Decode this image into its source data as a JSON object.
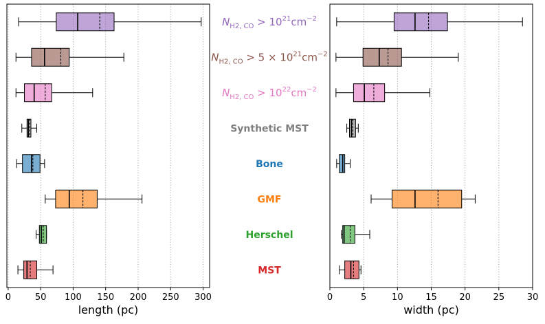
{
  "chart_data": [
    {
      "type": "boxplot",
      "orientation": "horizontal",
      "xlabel": "length (pc)",
      "xlim": [
        -2,
        310
      ],
      "xticks": [
        0,
        50,
        100,
        150,
        200,
        250,
        300
      ],
      "grid": "vertical dotted",
      "mean_line": "dashed",
      "categories": [
        "NH2_1e21",
        "NH2_5e21",
        "NH2_1e22",
        "Synthetic MST",
        "Bone",
        "GMF",
        "Herschel",
        "MST"
      ],
      "boxes": [
        {
          "whislo": 16,
          "q1": 74,
          "med": 107,
          "mean": 141,
          "q3": 163,
          "whishi": 297
        },
        {
          "whislo": 12,
          "q1": 36,
          "med": 56,
          "mean": 81,
          "q3": 94,
          "whishi": 178
        },
        {
          "whislo": 12,
          "q1": 25,
          "med": 40,
          "mean": 57,
          "q3": 67,
          "whishi": 130
        },
        {
          "whislo": 21,
          "q1": 29,
          "med": 31,
          "mean": 33,
          "q3": 35,
          "whishi": 44
        },
        {
          "whislo": 13,
          "q1": 22,
          "med": 36,
          "mean": 38,
          "q3": 49,
          "whishi": 56
        },
        {
          "whislo": 57,
          "q1": 73,
          "med": 94,
          "mean": 115,
          "q3": 137,
          "whishi": 206
        },
        {
          "whislo": 43,
          "q1": 48,
          "med": 51,
          "mean": 54,
          "q3": 59,
          "whishi": 59
        },
        {
          "whislo": 15,
          "q1": 24,
          "med": 29,
          "mean": 34,
          "q3": 44,
          "whishi": 69
        }
      ]
    },
    {
      "type": "boxplot",
      "orientation": "horizontal",
      "xlabel": "width (pc)",
      "xlim": [
        0,
        30
      ],
      "xticks": [
        0,
        5,
        10,
        15,
        20,
        25,
        30
      ],
      "grid": "vertical dotted",
      "mean_line": "dashed",
      "categories": [
        "NH2_1e21",
        "NH2_5e21",
        "NH2_1e22",
        "Synthetic MST",
        "Bone",
        "GMF",
        "Herschel",
        "MST"
      ],
      "boxes": [
        {
          "whislo": 1.0,
          "q1": 9.5,
          "med": 12.6,
          "mean": 14.6,
          "q3": 17.4,
          "whishi": 28.5
        },
        {
          "whislo": 0.9,
          "q1": 4.9,
          "med": 7.3,
          "mean": 8.6,
          "q3": 10.6,
          "whishi": 19.0
        },
        {
          "whislo": 0.9,
          "q1": 3.5,
          "med": 5.1,
          "mean": 6.5,
          "q3": 8.1,
          "whishi": 14.8
        },
        {
          "whislo": 2.5,
          "q1": 2.9,
          "med": 3.2,
          "mean": 3.4,
          "q3": 3.8,
          "whishi": 4.2
        },
        {
          "whislo": 1.0,
          "q1": 1.4,
          "med": 1.9,
          "mean": 1.9,
          "q3": 2.2,
          "whishi": 3.0
        },
        {
          "whislo": 6.1,
          "q1": 9.2,
          "med": 12.6,
          "mean": 16.0,
          "q3": 19.5,
          "whishi": 21.5
        },
        {
          "whislo": 1.7,
          "q1": 1.9,
          "med": 2.1,
          "mean": 3.0,
          "q3": 3.7,
          "whishi": 5.9
        },
        {
          "whislo": 1.4,
          "q1": 2.2,
          "med": 3.1,
          "mean": 3.5,
          "q3": 4.3,
          "whishi": 4.6
        }
      ]
    }
  ],
  "labels": [
    {
      "id": "nh2-1e21",
      "text_parts": [
        "N",
        "H2, CO",
        " > 10",
        "21",
        "cm",
        "−2"
      ],
      "color": "#9467bd"
    },
    {
      "id": "nh2-5e21",
      "text_parts": [
        "N",
        "H2, CO",
        " > 5 × 10",
        "21",
        "cm",
        "−2"
      ],
      "color": "#8c564b"
    },
    {
      "id": "nh2-1e22",
      "text_parts": [
        "N",
        "H2, CO",
        " > 10",
        "22",
        "cm",
        "−2"
      ],
      "color": "#e377c2"
    },
    {
      "id": "synthetic-mst",
      "text": "Synthetic MST",
      "color": "#7f7f7f"
    },
    {
      "id": "bone",
      "text": "Bone",
      "color": "#1f77b4"
    },
    {
      "id": "gmf",
      "text": "GMF",
      "color": "#ff7f0e"
    },
    {
      "id": "herschel",
      "text": "Herschel",
      "color": "#2ca02c"
    },
    {
      "id": "mst",
      "text": "MST",
      "color": "#d62728"
    }
  ],
  "box_colors": [
    "#9467bd",
    "#8c564b",
    "#e377c2",
    "#7f7f7f",
    "#1f77b4",
    "#ff7f0e",
    "#2ca02c",
    "#d62728"
  ]
}
